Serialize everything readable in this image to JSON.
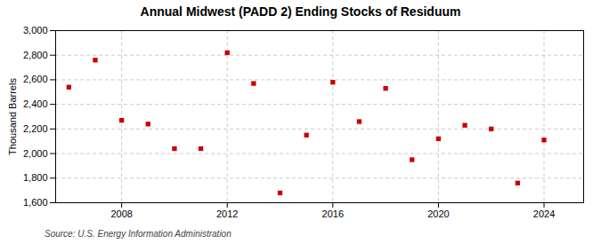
{
  "chart_data": {
    "type": "scatter",
    "title": "Annual Midwest (PADD 2) Ending Stocks of Residuum",
    "ylabel": "Thousand Barrels",
    "source": "Source: U.S. Energy Information Administration",
    "x": [
      2006,
      2007,
      2008,
      2009,
      2010,
      2011,
      2012,
      2013,
      2014,
      2015,
      2016,
      2017,
      2018,
      2019,
      2020,
      2021,
      2022,
      2023,
      2024
    ],
    "values": [
      2540,
      2760,
      2270,
      2240,
      2040,
      2040,
      2820,
      2570,
      1680,
      2150,
      2580,
      2260,
      2530,
      1950,
      2120,
      2230,
      2200,
      1760,
      2110
    ],
    "color": "#cc0000",
    "marker": "square",
    "ylim": [
      1600,
      3000
    ],
    "yticks": [
      {
        "value": 1600,
        "label": "1,600"
      },
      {
        "value": 1800,
        "label": "1,800"
      },
      {
        "value": 2000,
        "label": "2,000"
      },
      {
        "value": 2200,
        "label": "2,200"
      },
      {
        "value": 2400,
        "label": "2,400"
      },
      {
        "value": 2600,
        "label": "2,600"
      },
      {
        "value": 2800,
        "label": "2,800"
      },
      {
        "value": 3000,
        "label": "3,000"
      }
    ],
    "xlim": [
      2005.5,
      2025.5
    ],
    "xticks": [
      2008,
      2012,
      2016,
      2020,
      2024
    ],
    "grid": true
  }
}
